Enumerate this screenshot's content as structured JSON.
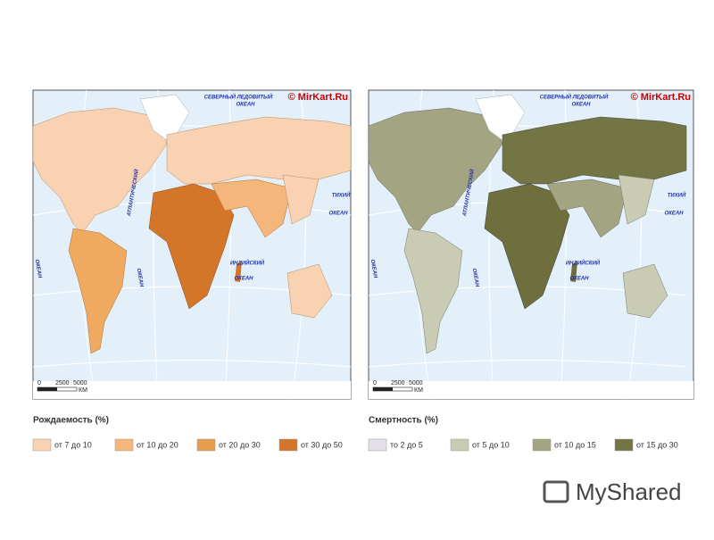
{
  "maps": [
    {
      "credit": "© MirKart.Ru",
      "ocean_labels": {
        "arctic": "СЕВЕРНЫЙ ЛЕДОВИТЫЙ",
        "arctic_2": "ОКЕАН",
        "atlantic": "АТЛАНТИЧЕСКИЙ",
        "atlantic_2": "ОКЕАН",
        "pacific": "ТИХИЙ",
        "pacific_2": "ОКЕАН",
        "pacific_west": "ОКЕАН",
        "indian": "ИНДИЙСКИЙ",
        "indian_2": "ОКЕАН"
      },
      "scale": {
        "ticks": [
          "0",
          "2500",
          "5000"
        ],
        "unit": "КМ"
      },
      "legend": {
        "title": "Рождаемость (%)",
        "items": [
          "от 7 до 10",
          "от 10 до 20",
          "от 20 до 30",
          "от 30 до 50"
        ]
      }
    },
    {
      "credit": "© MirKart.Ru",
      "ocean_labels": {
        "arctic": "СЕВЕРНЫЙ ЛЕДОВИТЫЙ",
        "arctic_2": "ОКЕАН",
        "atlantic": "АТЛАНТИЧЕСКИЙ",
        "atlantic_2": "ОКЕАН",
        "pacific": "ТИХИЙ",
        "pacific_2": "ОКЕАН",
        "pacific_west": "ОКЕАН",
        "indian": "ИНДИЙСКИЙ",
        "indian_2": "ОКЕАН"
      },
      "scale": {
        "ticks": [
          "0",
          "2500",
          "5000"
        ],
        "unit": "КМ"
      },
      "legend": {
        "title": "Смертность (%)",
        "items": [
          "то 2 до 5",
          "от 5 до 10",
          "от 10 до 15",
          "от 15 до 30"
        ]
      }
    }
  ],
  "watermark": "MyShared"
}
